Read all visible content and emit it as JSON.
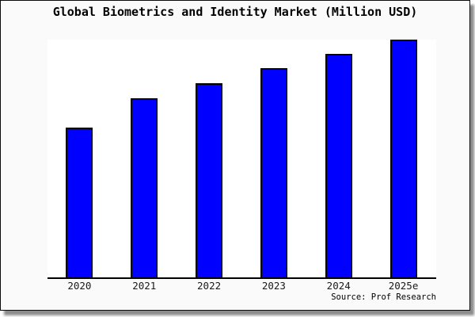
{
  "source_credit": "Source: Prof Research",
  "colors": {
    "bar_fill": "#0000ff",
    "bar_border": "#000000",
    "plot_background": "#ffffff",
    "canvas_background": "#fafafa",
    "frame_border": "#0a0a0a",
    "shadow": "#8c8c8c"
  },
  "chart_data": {
    "type": "bar",
    "title": "Global Biometrics and Identity Market (Million USD)",
    "categories": [
      "2020",
      "2021",
      "2022",
      "2023",
      "2024",
      "2025e"
    ],
    "values": [
      62.8,
      75.1,
      81.4,
      87.7,
      93.7,
      100
    ],
    "xlabel": "",
    "ylabel": "",
    "ylim": [
      0,
      100
    ],
    "y_axis_labels_visible": false,
    "grid": false,
    "legend": false,
    "value_note": "Chart shows no y-axis scale; values are relative bar heights as % of tallest (2025e) bar",
    "unit": "Million USD"
  }
}
